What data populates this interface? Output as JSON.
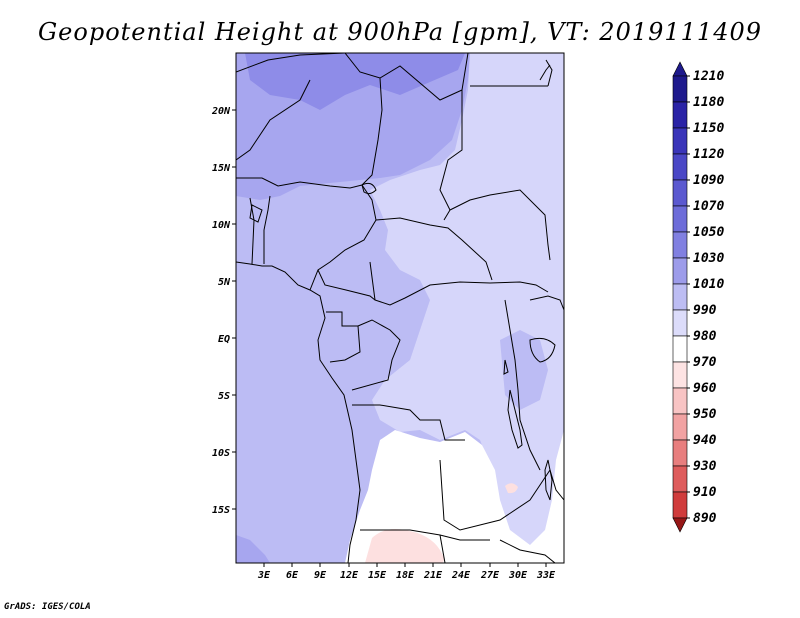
{
  "title": "Geopotential Height at 900hPa [gpm], VT: 2019111409",
  "credit": "GrADS: IGES/COLA",
  "lat_labels": [
    "20N",
    "15N",
    "10N",
    "5N",
    "EQ",
    "5S",
    "10S",
    "15S"
  ],
  "lon_labels": [
    "3E",
    "6E",
    "9E",
    "12E",
    "15E",
    "18E",
    "21E",
    "24E",
    "27E",
    "30E",
    "33E"
  ],
  "colorbar": {
    "levels": [
      "1210",
      "1180",
      "1150",
      "1120",
      "1090",
      "1070",
      "1050",
      "1030",
      "1010",
      "990",
      "980",
      "970",
      "960",
      "950",
      "940",
      "930",
      "910",
      "890"
    ],
    "colors": [
      "#1e1a8c",
      "#2a23a6",
      "#3a35b9",
      "#4a47c6",
      "#5b59d0",
      "#6d6cd9",
      "#8180e1",
      "#9d9cea",
      "#bdbdf3",
      "#dcdcfa",
      "#ffffff",
      "#fde3e3",
      "#f8c4c4",
      "#f1a2a2",
      "#e87e7e",
      "#de5c5c",
      "#d03c3c",
      "#b62727",
      "#961717"
    ]
  },
  "map_colors": {
    "h1090": "#8e8ce8",
    "h1070": "#a7a6ef",
    "h1050": "#bcbcf4",
    "h1030": "#d6d6fa",
    "h1010": "#ffffff",
    "h990": "#fde0e0"
  }
}
